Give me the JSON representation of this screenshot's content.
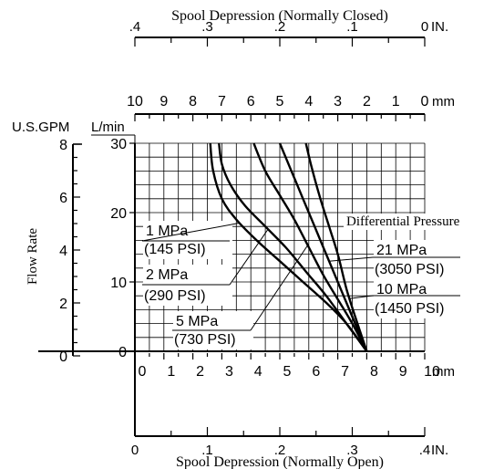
{
  "chart_data": {
    "type": "line",
    "top_inch_axis": {
      "title": "Spool Depression (Normally Closed)",
      "unit": "IN.",
      "ticks": [
        ".4",
        ".3",
        ".2",
        ".1",
        "0"
      ]
    },
    "top_mm_axis": {
      "unit": "mm",
      "ticks": [
        "10",
        "9",
        "8",
        "7",
        "6",
        "5",
        "4",
        "3",
        "2",
        "1",
        "0"
      ]
    },
    "bottom_mm_axis": {
      "unit": "mm",
      "ticks": [
        "0",
        "1",
        "2",
        "3",
        "4",
        "5",
        "6",
        "7",
        "8",
        "9",
        "10"
      ]
    },
    "bottom_inch_axis": {
      "title": "Spool Depression (Normally Open)",
      "unit": "IN.",
      "ticks": [
        "0",
        ".1",
        ".2",
        ".3",
        ".4"
      ]
    },
    "y_axis_gpm": {
      "unit": "U.S.GPM",
      "ticks": [
        "0",
        "2",
        "4",
        "6",
        "8"
      ]
    },
    "y_axis_lpm": {
      "unit": "L/min",
      "ticks": [
        "0",
        "10",
        "20",
        "30"
      ]
    },
    "ylabel": "Flow Rate",
    "xlim": [
      0,
      10
    ],
    "ylim": [
      0,
      30
    ],
    "grid": true,
    "legend_title": "Differential Pressure",
    "series": [
      {
        "name": "1 MPa (145 PSI)",
        "label_lines": [
          "1 MPa",
          "(145 PSI)"
        ],
        "x": [
          2.6,
          2.7,
          3.0,
          3.5,
          4.2,
          5.0,
          5.8,
          6.6,
          7.3,
          8.0
        ],
        "y": [
          30,
          26,
          22,
          19,
          16,
          13,
          10,
          7,
          4,
          0
        ]
      },
      {
        "name": "2 MPa (290 PSI)",
        "label_lines": [
          "2 MPa",
          "(290 PSI)"
        ],
        "x": [
          2.9,
          3.0,
          3.3,
          3.8,
          4.5,
          5.2,
          5.9,
          6.6,
          7.3,
          8.0
        ],
        "y": [
          30,
          27,
          24,
          21,
          18,
          15,
          11.5,
          8,
          4,
          0
        ]
      },
      {
        "name": "5 MPa (730 PSI)",
        "label_lines": [
          "5 MPa",
          "(730 PSI)"
        ],
        "x": [
          4.1,
          4.5,
          5.0,
          5.5,
          6.0,
          6.5,
          7.0,
          7.5,
          8.0
        ],
        "y": [
          30,
          26,
          22.5,
          19,
          15,
          11,
          7.5,
          4,
          0
        ]
      },
      {
        "name": "10 MPa (1450 PSI)",
        "label_lines": [
          "10 MPa",
          "(1450 PSI)"
        ],
        "x": [
          5.9,
          6.1,
          6.4,
          6.7,
          7.0,
          7.3,
          7.6,
          8.0
        ],
        "y": [
          30,
          26.5,
          22,
          18,
          14,
          9,
          5,
          0
        ]
      },
      {
        "name": "21 MPa (3050 PSI)",
        "label_lines": [
          "21 MPa",
          "(3050 PSI)"
        ],
        "x": [
          5.0,
          5.4,
          5.8,
          6.2,
          6.6,
          7.0,
          7.4,
          8.0
        ],
        "y": [
          30,
          26,
          22,
          18,
          14,
          10,
          6,
          0
        ]
      }
    ]
  }
}
